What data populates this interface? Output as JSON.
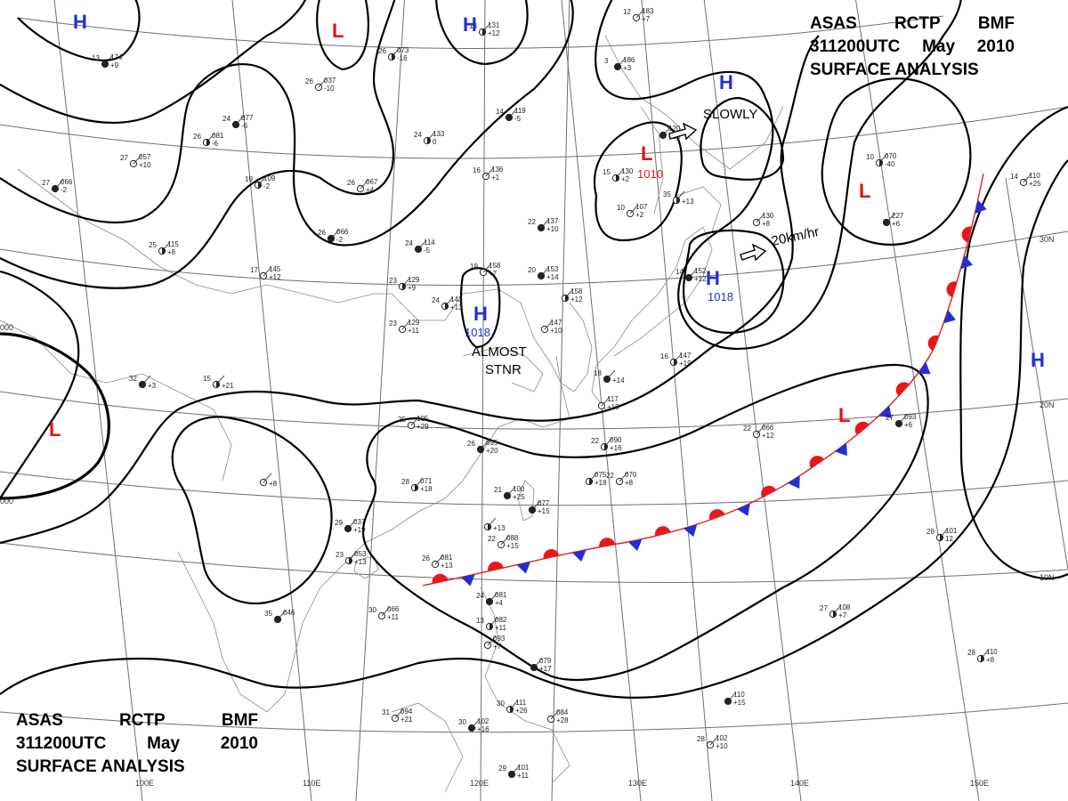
{
  "header": {
    "agency": "ASAS",
    "station": "RCTP",
    "office": "BMF",
    "time": "311200UTC",
    "month": "May",
    "year": "2010",
    "product": "SURFACE ANALYSIS"
  },
  "graticule": {
    "longitudes": [
      "100E",
      "110E",
      "120E",
      "130E",
      "140E",
      "150E"
    ],
    "latitudes": [
      "30N",
      "20N",
      "10N"
    ]
  },
  "isobar_labels": [
    "000",
    "000"
  ],
  "pressure_systems": [
    {
      "type": "H",
      "label": "H"
    },
    {
      "type": "H",
      "label": "H"
    },
    {
      "type": "H",
      "label": "H"
    },
    {
      "type": "H",
      "label": "H",
      "pressure": "1018",
      "motion": "ALMOST STNR"
    },
    {
      "type": "H",
      "label": "H",
      "pressure": "1018",
      "motion": "20km/hr"
    },
    {
      "type": "H",
      "label": "H"
    },
    {
      "type": "L",
      "label": "L"
    },
    {
      "type": "L",
      "label": "L",
      "pressure": "1010",
      "motion": "SLOWLY"
    },
    {
      "type": "L",
      "label": "L"
    },
    {
      "type": "L",
      "label": "L"
    }
  ],
  "notes": {
    "almost": "ALMOST",
    "stnr": "STNR",
    "slowly": "SLOWLY",
    "speed": "20km/hr",
    "p1018a": "1018",
    "p1018b": "1018",
    "p1010": "1010"
  },
  "front": {
    "type": "stationary"
  },
  "stations": [
    {
      "t": "13",
      "p": "174",
      "d": "+9"
    },
    {
      "t": "26",
      "p": "073",
      "d": "-16"
    },
    {
      "t": "26",
      "p": "037",
      "d": "-10"
    },
    {
      "t": "24",
      "p": "077",
      "d": "-6"
    },
    {
      "t": "26",
      "p": "081",
      "d": "-6"
    },
    {
      "t": "27",
      "p": "057",
      "d": "+10"
    },
    {
      "t": "27",
      "p": "066",
      "d": "-2"
    },
    {
      "t": "19",
      "p": "109",
      "d": "-2"
    },
    {
      "t": "26",
      "p": "067",
      "d": "+4"
    },
    {
      "t": "26",
      "p": "066",
      "d": "-2"
    },
    {
      "t": "25",
      "p": "115",
      "d": "+8"
    },
    {
      "t": "17",
      "p": "145",
      "d": "+12"
    },
    {
      "t": "14",
      "p": "119",
      "d": "-5"
    },
    {
      "t": "24",
      "p": "133",
      "d": "0"
    },
    {
      "t": "16",
      "p": "136",
      "d": "+1"
    },
    {
      "t": "24",
      "p": "114",
      "d": "-5"
    },
    {
      "t": "23",
      "p": "129",
      "d": "+9"
    },
    {
      "t": "19",
      "p": "158",
      "d": "+7"
    },
    {
      "t": "20",
      "p": "153",
      "d": "+14"
    },
    {
      "t": "24",
      "p": "143",
      "d": "+13"
    },
    {
      "t": "23",
      "p": "129",
      "d": "+11"
    },
    {
      "t": "22",
      "p": "137",
      "d": "+10"
    },
    {
      "t": "15",
      "p": "130",
      "d": "+2"
    },
    {
      "t": "10",
      "p": "107",
      "d": "+2"
    },
    {
      "t": "3",
      "p": "186",
      "d": "+3"
    },
    {
      "t": "13",
      "p": "131",
      "d": "+12"
    },
    {
      "t": "12",
      "p": "183",
      "d": "+7"
    },
    {
      "t": "",
      "p": "120",
      "d": "+10"
    },
    {
      "t": "35",
      "p": "",
      "d": "+13"
    },
    {
      "t": "",
      "p": "130",
      "d": "+8"
    },
    {
      "t": "14",
      "p": "152",
      "d": "+12"
    },
    {
      "t": "10",
      "p": "070",
      "d": "-40"
    },
    {
      "t": "14",
      "p": "110",
      "d": "+25"
    },
    {
      "t": "",
      "p": "227",
      "d": "+6"
    },
    {
      "t": "",
      "p": "158",
      "d": "+12"
    },
    {
      "t": "",
      "p": "147",
      "d": "+10"
    },
    {
      "t": "18",
      "p": "",
      "d": "+14"
    },
    {
      "t": "16",
      "p": "147",
      "d": "+19"
    },
    {
      "t": "",
      "p": "117",
      "d": "+18"
    },
    {
      "t": "32",
      "p": "",
      "d": "+3"
    },
    {
      "t": "15",
      "p": "",
      "d": "+21"
    },
    {
      "t": "25",
      "p": "105",
      "d": "+29"
    },
    {
      "t": "26",
      "p": "095",
      "d": "+20"
    },
    {
      "t": "22",
      "p": "090",
      "d": "+16"
    },
    {
      "t": "22",
      "p": "066",
      "d": "+12"
    },
    {
      "t": "27",
      "p": "093",
      "d": "+6"
    },
    {
      "t": "28",
      "p": "071",
      "d": "+18"
    },
    {
      "t": "",
      "p": "",
      "d": "+8"
    },
    {
      "t": "21",
      "p": "100",
      "d": "+25"
    },
    {
      "t": "",
      "p": "075",
      "d": "+18"
    },
    {
      "t": "22",
      "p": "070",
      "d": "+8"
    },
    {
      "t": "",
      "p": "077",
      "d": "+15"
    },
    {
      "t": "",
      "p": "",
      "d": "+13"
    },
    {
      "t": "22",
      "p": "088",
      "d": "+15"
    },
    {
      "t": "29",
      "p": "037",
      "d": "+19"
    },
    {
      "t": "23",
      "p": "053",
      "d": "+13"
    },
    {
      "t": "26",
      "p": "081",
      "d": "+13"
    },
    {
      "t": "24",
      "p": "081",
      "d": "+4"
    },
    {
      "t": "28",
      "p": "101",
      "d": "12"
    },
    {
      "t": "30",
      "p": "066",
      "d": "+11"
    },
    {
      "t": "35",
      "p": "046",
      "d": ""
    },
    {
      "t": "13",
      "p": "082",
      "d": "+11"
    },
    {
      "t": "",
      "p": "093",
      "d": "+7"
    },
    {
      "t": "",
      "p": "079",
      "d": "+17"
    },
    {
      "t": "27",
      "p": "108",
      "d": "+7"
    },
    {
      "t": "31",
      "p": "094",
      "d": "+21"
    },
    {
      "t": "30",
      "p": "102",
      "d": "+16"
    },
    {
      "t": "30",
      "p": "111",
      "d": "+26"
    },
    {
      "t": "",
      "p": "084",
      "d": "+28"
    },
    {
      "t": "",
      "p": "110",
      "d": "+15"
    },
    {
      "t": "28",
      "p": "110",
      "d": "+8"
    },
    {
      "t": "28",
      "p": "102",
      "d": "+10"
    },
    {
      "t": "29",
      "p": "101",
      "d": "+11"
    }
  ]
}
